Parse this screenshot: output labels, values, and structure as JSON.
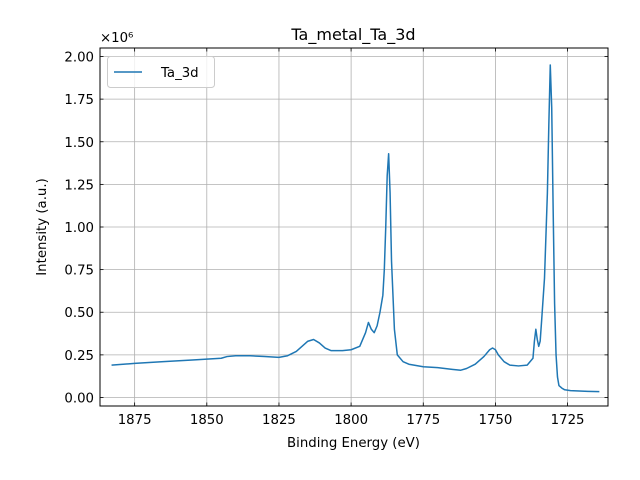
{
  "chart_data": {
    "type": "line",
    "title": "Ta_metal_Ta_3d",
    "xlabel": "Binding Energy (eV)",
    "ylabel": "Intensity (a.u.)",
    "y_offset_text": "×10⁶",
    "y_multiplier": 1000000,
    "x_inverted": true,
    "xlim": [
      1887,
      1711
    ],
    "ylim": [
      -0.05,
      2.05
    ],
    "x_ticks": [
      1875,
      1850,
      1825,
      1800,
      1775,
      1750,
      1725
    ],
    "y_ticks": [
      0.0,
      0.25,
      0.5,
      0.75,
      1.0,
      1.25,
      1.5,
      1.75,
      2.0
    ],
    "x_tick_labels": [
      "1875",
      "1850",
      "1825",
      "1800",
      "1775",
      "1750",
      "1725"
    ],
    "y_tick_labels": [
      "0.00",
      "0.25",
      "0.50",
      "0.75",
      "1.00",
      "1.25",
      "1.50",
      "1.75",
      "2.00"
    ],
    "grid": true,
    "legend_position": "top-left",
    "series": [
      {
        "name": "Ta_3d",
        "color": "#1f77b4",
        "x": [
          1883,
          1875,
          1865,
          1855,
          1850,
          1845,
          1843,
          1840,
          1835,
          1830,
          1825,
          1822,
          1819,
          1817,
          1815,
          1813,
          1811,
          1809,
          1807,
          1805,
          1803,
          1800,
          1797,
          1795,
          1794,
          1793,
          1792,
          1791,
          1790,
          1789,
          1788.5,
          1788,
          1787.5,
          1787,
          1786.5,
          1786,
          1785,
          1784,
          1782,
          1780,
          1775,
          1770,
          1765,
          1762,
          1760,
          1757,
          1754,
          1752,
          1751,
          1750,
          1749,
          1747,
          1745,
          1742,
          1739,
          1737,
          1736.5,
          1736,
          1735.5,
          1735,
          1734.5,
          1734,
          1733,
          1732,
          1731.5,
          1731,
          1730.5,
          1730,
          1729.5,
          1729,
          1728.5,
          1728,
          1727,
          1726,
          1724,
          1721,
          1718,
          1714
        ],
        "y": [
          0.19,
          0.2,
          0.21,
          0.22,
          0.225,
          0.23,
          0.24,
          0.245,
          0.245,
          0.24,
          0.235,
          0.245,
          0.27,
          0.3,
          0.33,
          0.34,
          0.32,
          0.29,
          0.275,
          0.275,
          0.275,
          0.28,
          0.3,
          0.38,
          0.44,
          0.4,
          0.38,
          0.42,
          0.5,
          0.6,
          0.75,
          1.0,
          1.3,
          1.43,
          1.2,
          0.8,
          0.4,
          0.25,
          0.21,
          0.195,
          0.18,
          0.175,
          0.165,
          0.16,
          0.17,
          0.195,
          0.24,
          0.28,
          0.29,
          0.28,
          0.25,
          0.21,
          0.19,
          0.185,
          0.19,
          0.23,
          0.33,
          0.4,
          0.34,
          0.3,
          0.33,
          0.45,
          0.7,
          1.2,
          1.6,
          1.95,
          1.7,
          1.1,
          0.55,
          0.25,
          0.12,
          0.07,
          0.055,
          0.045,
          0.04,
          0.038,
          0.036,
          0.034
        ]
      }
    ]
  }
}
